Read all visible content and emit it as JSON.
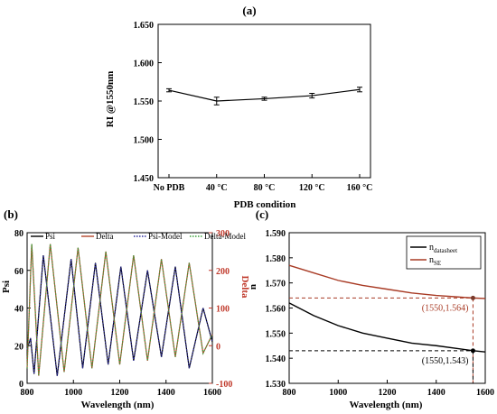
{
  "chart_data": [
    {
      "panel_label": "(a)",
      "type": "line",
      "categories": [
        "No PDB",
        "40 °C",
        "80 °C",
        "120 °C",
        "160 °C"
      ],
      "values": [
        1.564,
        1.55,
        1.553,
        1.557,
        1.565
      ],
      "errors": [
        0.002,
        0.005,
        0.002,
        0.003,
        0.003
      ],
      "xlabel": "PDB condition",
      "ylabel": "RI @1550nm",
      "ylim": [
        1.45,
        1.65
      ],
      "yticks": [
        "1.450",
        "1.500",
        "1.550",
        "1.600",
        "1.650"
      ],
      "grid": false
    },
    {
      "panel_label": "(b)",
      "type": "line",
      "xlabel": "Wavelength (nm)",
      "ylabel": "Psi",
      "ylabel_right": "Delta",
      "xlim": [
        800,
        1600
      ],
      "ylim": [
        0,
        80
      ],
      "ylim_right": [
        -100,
        300
      ],
      "xticks": [
        "800",
        "1000",
        "1200",
        "1400",
        "1600"
      ],
      "yticks": [
        "0",
        "20",
        "40",
        "60",
        "80"
      ],
      "yticks_right": [
        "-100",
        "0",
        "100",
        "200",
        "300"
      ],
      "legend": "top",
      "series": [
        {
          "name": "Psi",
          "color": "#000000",
          "style": "solid",
          "x": [
            800,
            815,
            830,
            870,
            930,
            990,
            1040,
            1095,
            1150,
            1205,
            1260,
            1320,
            1380,
            1440,
            1500,
            1560,
            1600
          ],
          "values": [
            18,
            24,
            5,
            68,
            4,
            66,
            8,
            64,
            10,
            62,
            12,
            60,
            14,
            62,
            8,
            40,
            22
          ]
        },
        {
          "name": "Delta",
          "color": "#b5472e",
          "style": "solid",
          "x": [
            800,
            820,
            850,
            900,
            960,
            1020,
            1080,
            1140,
            1200,
            1260,
            1320,
            1380,
            1440,
            1500,
            1560,
            1600
          ],
          "values": [
            -60,
            270,
            -80,
            270,
            -70,
            260,
            -60,
            250,
            -50,
            240,
            -40,
            230,
            -30,
            220,
            -20,
            30
          ]
        },
        {
          "name": "Psi-Model",
          "color": "#2b2b9e",
          "style": "dotted",
          "x": [
            800,
            815,
            830,
            870,
            930,
            990,
            1040,
            1095,
            1150,
            1205,
            1260,
            1320,
            1380,
            1440,
            1500,
            1560,
            1600
          ],
          "values": [
            18,
            24,
            5,
            68,
            4,
            66,
            8,
            64,
            10,
            62,
            12,
            60,
            14,
            62,
            8,
            40,
            22
          ]
        },
        {
          "name": "Delta-Model",
          "color": "#3aa03a",
          "style": "dotted",
          "x": [
            800,
            820,
            850,
            900,
            960,
            1020,
            1080,
            1140,
            1200,
            1260,
            1320,
            1380,
            1440,
            1500,
            1560,
            1600
          ],
          "values": [
            -60,
            270,
            -80,
            270,
            -70,
            260,
            -60,
            250,
            -50,
            240,
            -40,
            230,
            -30,
            220,
            -20,
            30
          ]
        }
      ]
    },
    {
      "panel_label": "(c)",
      "type": "line",
      "xlabel": "Wavelength (nm)",
      "ylabel": "n",
      "xlim": [
        800,
        1600
      ],
      "ylim": [
        1.53,
        1.59
      ],
      "xticks": [
        "800",
        "1000",
        "1200",
        "1400",
        "1600"
      ],
      "yticks": [
        "1.530",
        "1.540",
        "1.550",
        "1.560",
        "1.570",
        "1.580",
        "1.590"
      ],
      "legend": "top-right",
      "series": [
        {
          "name": "n",
          "name_sub": "datasheet",
          "color": "#000000",
          "x": [
            800,
            900,
            1000,
            1100,
            1200,
            1300,
            1400,
            1550,
            1600
          ],
          "values": [
            1.562,
            1.557,
            1.553,
            1.55,
            1.548,
            1.546,
            1.545,
            1.543,
            1.5425
          ]
        },
        {
          "name": "n",
          "name_sub": "SE",
          "color": "#a83a24",
          "x": [
            800,
            900,
            1000,
            1100,
            1200,
            1300,
            1400,
            1550,
            1600
          ],
          "values": [
            1.577,
            1.574,
            1.571,
            1.569,
            1.5675,
            1.566,
            1.565,
            1.564,
            1.5638
          ]
        }
      ],
      "annotations": [
        {
          "x": 1550,
          "y": 1.564,
          "label": "(1550,1.564)",
          "color": "#a83a24"
        },
        {
          "x": 1550,
          "y": 1.543,
          "label": "(1550,1.543)",
          "color": "#000000"
        }
      ]
    }
  ]
}
